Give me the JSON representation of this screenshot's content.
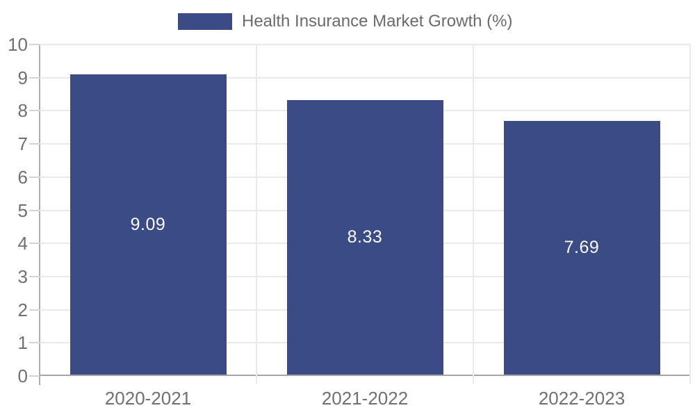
{
  "chart_data": {
    "type": "bar",
    "title": "Health Insurance Market Growth (%)",
    "categories": [
      "2020-2021",
      "2021-2022",
      "2022-2023"
    ],
    "values": [
      9.09,
      8.33,
      7.69
    ],
    "value_labels": [
      "9.09",
      "8.33",
      "7.69"
    ],
    "ylim": [
      0,
      10
    ],
    "yticks": [
      0,
      1,
      2,
      3,
      4,
      5,
      6,
      7,
      8,
      9,
      10
    ],
    "legend_position": "top",
    "grid": true,
    "bar_color": "#3a4b85",
    "value_label_color": "#fafafa",
    "tick_label_color": "#707070",
    "legend_label_color": "#6b6b6b"
  }
}
